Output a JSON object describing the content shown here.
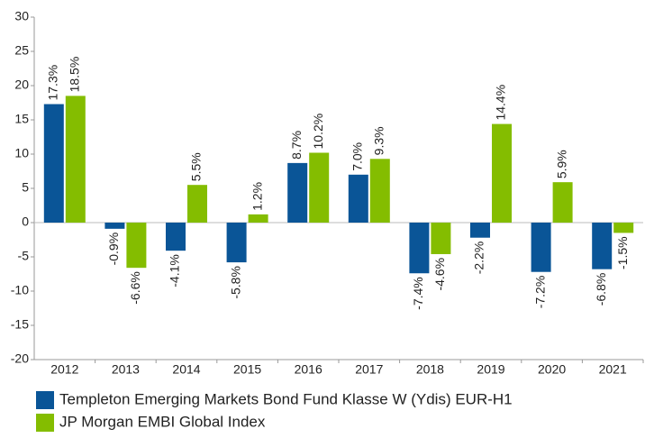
{
  "chart_data": {
    "type": "bar",
    "categories": [
      "2012",
      "2013",
      "2014",
      "2015",
      "2016",
      "2017",
      "2018",
      "2019",
      "2020",
      "2021"
    ],
    "series": [
      {
        "name": "Templeton Emerging Markets Bond Fund Klasse W (Ydis) EUR-H1",
        "color": "#0a5597",
        "values": [
          17.3,
          -0.9,
          -4.1,
          -5.8,
          8.7,
          7.0,
          -7.4,
          -2.2,
          -7.2,
          -6.8
        ],
        "value_labels": [
          "17.3%",
          "-0.9%",
          "-4.1%",
          "-5.8%",
          "8.7%",
          "7.0%",
          "-7.4%",
          "-2.2%",
          "-7.2%",
          "-6.8%"
        ]
      },
      {
        "name": "JP Morgan EMBI Global Index",
        "color": "#84bd00",
        "values": [
          18.5,
          -6.6,
          5.5,
          1.2,
          10.2,
          9.3,
          -4.6,
          14.4,
          5.9,
          -1.5
        ],
        "value_labels": [
          "18.5%",
          "-6.6%",
          "5.5%",
          "1.2%",
          "10.2%",
          "9.3%",
          "-4.6%",
          "14.4%",
          "5.9%",
          "-1.5%"
        ]
      }
    ],
    "ylim": [
      -20,
      30
    ],
    "yticks": [
      -20,
      -15,
      -10,
      -5,
      0,
      5,
      10,
      15,
      20,
      25,
      30
    ],
    "grid": false
  }
}
